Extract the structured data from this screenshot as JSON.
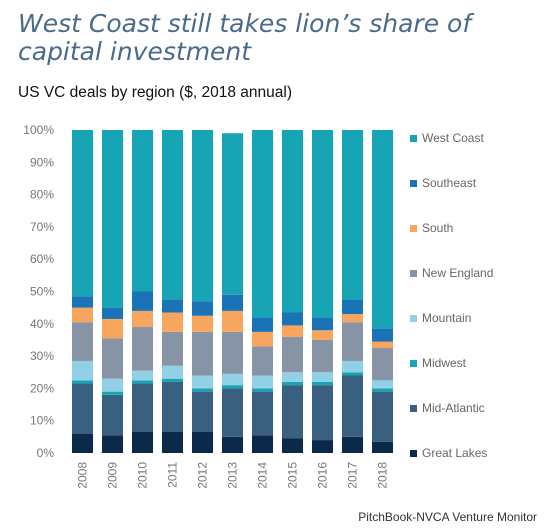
{
  "chart_data": {
    "type": "bar",
    "stacked": true,
    "title": "West Coast still takes lion’s share of capital investment",
    "subtitle": "US VC deals by region ($, 2018 annual)",
    "source": "PitchBook-NVCA Venture Monitor",
    "categories": [
      "2008",
      "2009",
      "2010",
      "2011",
      "2012",
      "2013",
      "2014",
      "2015",
      "2016",
      "2017",
      "2018"
    ],
    "y_ticks": [
      "0%",
      "10%",
      "20%",
      "30%",
      "40%",
      "50%",
      "60%",
      "70%",
      "80%",
      "90%",
      "100%"
    ],
    "ylim": [
      0,
      100
    ],
    "grid": false,
    "legend_position": "right",
    "series": [
      {
        "name": "Great Lakes",
        "color": "#0b2a4a",
        "values": [
          6,
          5.5,
          6.5,
          6.5,
          6.5,
          5,
          5.5,
          4.5,
          4,
          5,
          3.5
        ]
      },
      {
        "name": "Mid-Atlantic",
        "color": "#39607f",
        "values": [
          15.5,
          12.5,
          15,
          15.5,
          12.5,
          15,
          13.5,
          16.5,
          17,
          19,
          15.5
        ]
      },
      {
        "name": "Midwest",
        "color": "#17a4b4",
        "values": [
          1,
          1,
          1,
          1,
          1,
          1,
          1,
          1,
          1,
          1,
          1
        ]
      },
      {
        "name": "Mountain",
        "color": "#92d0e8",
        "values": [
          6,
          4,
          3,
          4,
          4,
          3.5,
          4,
          3,
          3,
          3.5,
          2.5
        ]
      },
      {
        "name": "New England",
        "color": "#8794a5",
        "values": [
          12,
          12.5,
          13.5,
          10.5,
          13.5,
          13,
          9,
          11,
          10,
          12,
          10
        ]
      },
      {
        "name": "South",
        "color": "#f8a65e",
        "values": [
          4.5,
          6,
          5,
          6,
          5,
          6.5,
          4.5,
          3.5,
          3,
          2.5,
          2
        ]
      },
      {
        "name": "Southeast",
        "color": "#1a73b6",
        "values": [
          3.5,
          3.5,
          6,
          4,
          4.5,
          5,
          4.5,
          4,
          4,
          4.5,
          4
        ]
      },
      {
        "name": "West Coast",
        "color": "#17a4b4",
        "values": [
          51.5,
          55,
          50,
          52.5,
          53,
          50,
          58,
          56.5,
          58,
          52.5,
          61.5
        ]
      }
    ]
  }
}
